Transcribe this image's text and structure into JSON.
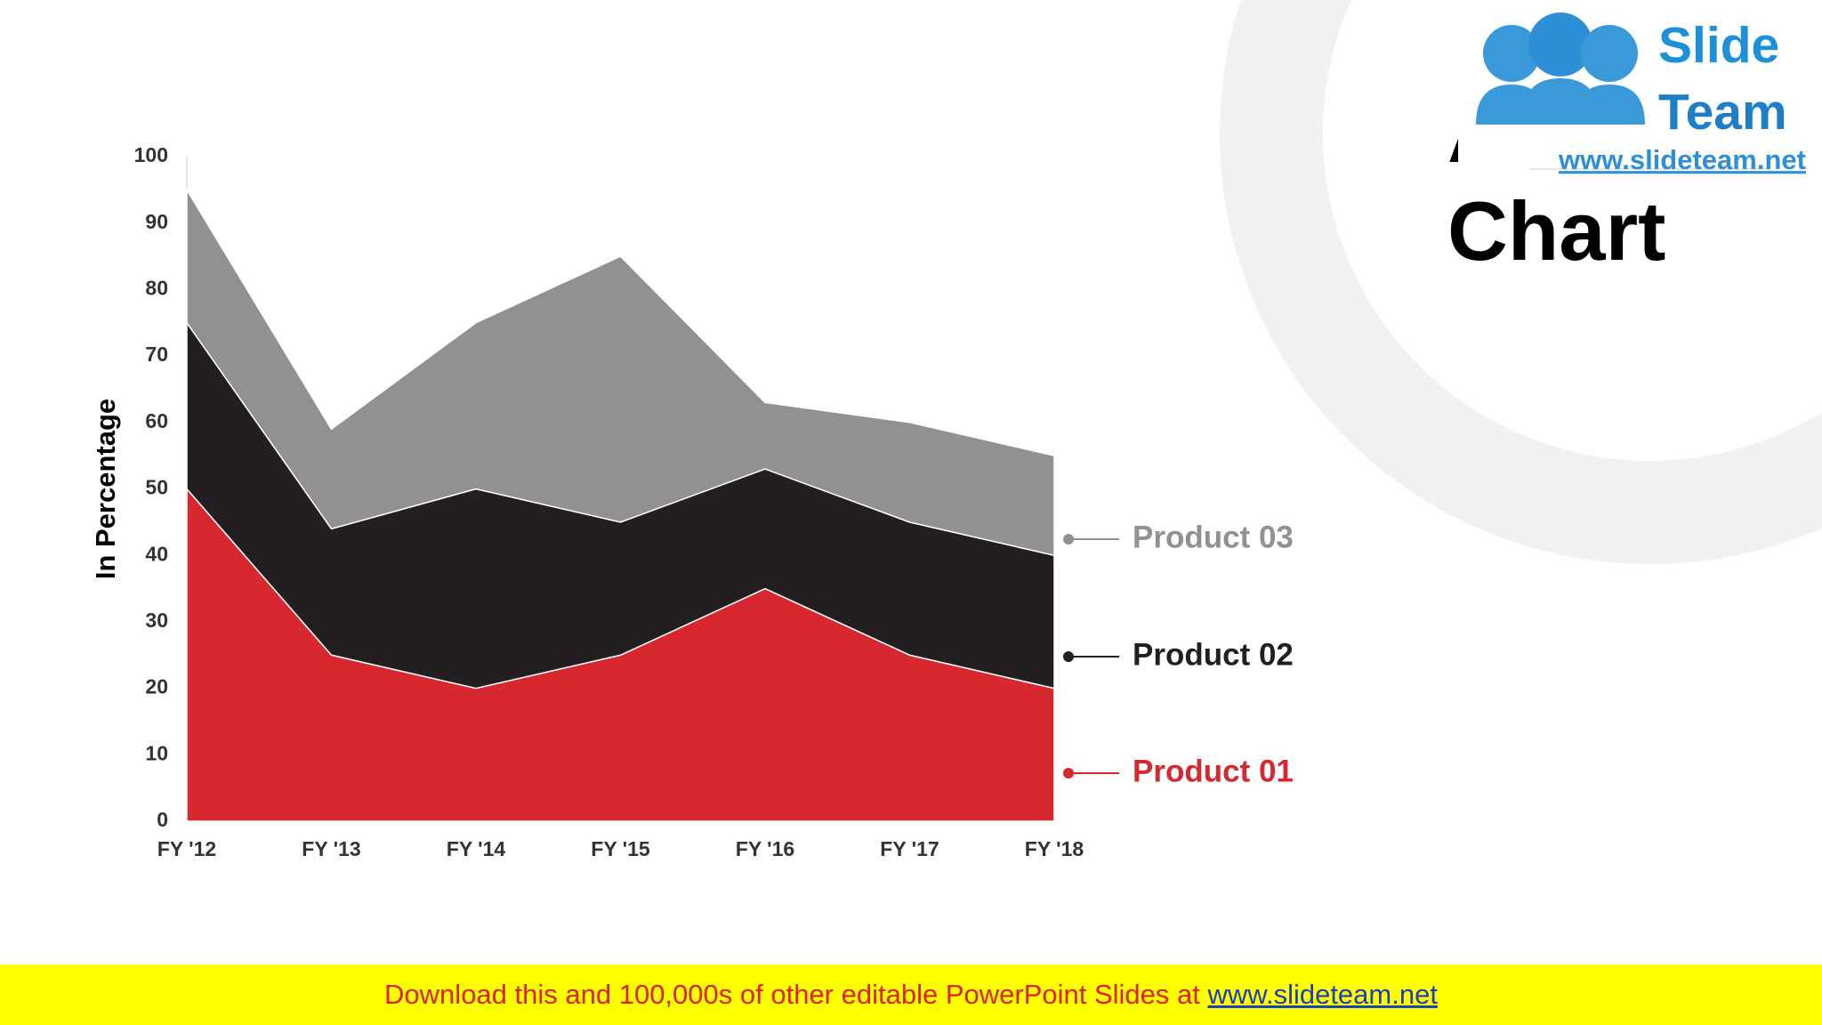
{
  "chart_data": {
    "type": "stacked_area",
    "title": "Area Chart",
    "y_label": "In Percentage",
    "categories": [
      "FY '12",
      "FY '13",
      "FY '14",
      "FY '15",
      "FY '16",
      "FY '17",
      "FY '18"
    ],
    "series": [
      {
        "name": "Product 01",
        "color": "#d7282f",
        "values": [
          50,
          25,
          20,
          25,
          35,
          25,
          20
        ]
      },
      {
        "name": "Product 02",
        "color": "#231f20",
        "values": [
          25,
          19,
          30,
          20,
          18,
          20,
          20
        ]
      },
      {
        "name": "Product 03",
        "color": "#929091",
        "values": [
          20,
          15,
          25,
          40,
          10,
          15,
          15
        ]
      }
    ],
    "ylim": [
      0,
      100
    ],
    "yticks": [
      0,
      10,
      20,
      30,
      40,
      50,
      60,
      70,
      80,
      90,
      100
    ],
    "grid": false
  },
  "logo": {
    "line1": "Slide",
    "line2": "Team",
    "url": "www.slideteam.net"
  },
  "banner": {
    "text": "Download this and 100,000s of other editable PowerPoint Slides at",
    "link": "www.slideteam.net"
  }
}
